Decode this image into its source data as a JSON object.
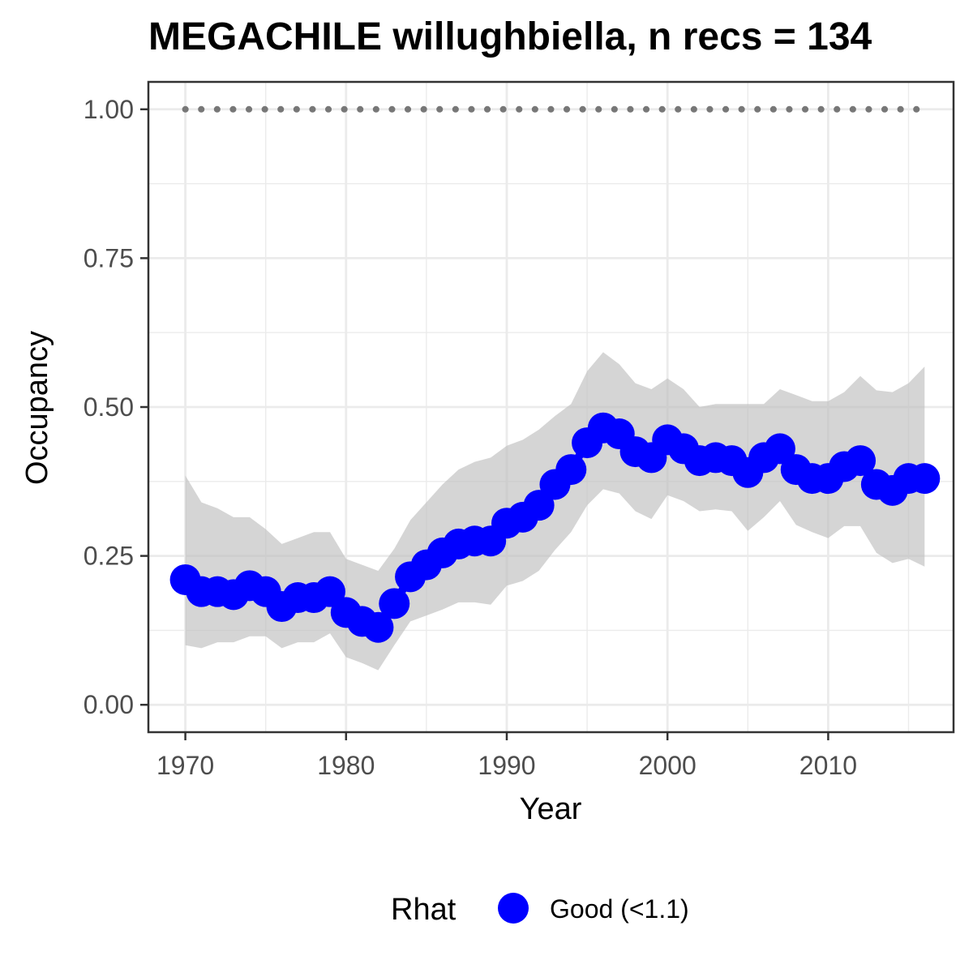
{
  "chart_data": {
    "type": "line",
    "title": "MEGACHILE willughbiella, n recs = 134",
    "xlabel": "Year",
    "ylabel": "Occupancy",
    "xlim": [
      1967.7,
      2017.8
    ],
    "ylim": [
      -0.046,
      1.046
    ],
    "x_ticks": [
      1970,
      1980,
      1990,
      2000,
      2010
    ],
    "x_tick_labels": [
      "1970",
      "1980",
      "1990",
      "2000",
      "2010"
    ],
    "y_ticks": [
      0,
      0.25,
      0.5,
      0.75,
      1
    ],
    "y_tick_labels": [
      "0.00",
      "0.25",
      "0.50",
      "0.75",
      "1.00"
    ],
    "grid": true,
    "x": [
      1970,
      1971,
      1972,
      1973,
      1974,
      1975,
      1976,
      1977,
      1978,
      1979,
      1980,
      1981,
      1982,
      1983,
      1984,
      1985,
      1986,
      1987,
      1988,
      1989,
      1990,
      1991,
      1992,
      1993,
      1994,
      1995,
      1996,
      1997,
      1998,
      1999,
      2000,
      2001,
      2002,
      2003,
      2004,
      2005,
      2006,
      2007,
      2008,
      2009,
      2010,
      2011,
      2012,
      2013,
      2014,
      2015,
      2016
    ],
    "series": [
      {
        "name": "Occupancy",
        "values": [
          0.21,
          0.19,
          0.19,
          0.185,
          0.2,
          0.19,
          0.165,
          0.18,
          0.18,
          0.19,
          0.155,
          0.14,
          0.13,
          0.17,
          0.215,
          0.235,
          0.255,
          0.27,
          0.275,
          0.275,
          0.305,
          0.315,
          0.335,
          0.37,
          0.395,
          0.44,
          0.465,
          0.455,
          0.425,
          0.415,
          0.445,
          0.43,
          0.41,
          0.415,
          0.41,
          0.39,
          0.415,
          0.43,
          0.395,
          0.38,
          0.38,
          0.4,
          0.41,
          0.37,
          0.36,
          0.38,
          0.38
        ],
        "lower": [
          0.1,
          0.095,
          0.105,
          0.105,
          0.115,
          0.115,
          0.095,
          0.105,
          0.105,
          0.12,
          0.08,
          0.07,
          0.058,
          0.1,
          0.14,
          0.15,
          0.16,
          0.172,
          0.172,
          0.168,
          0.2,
          0.208,
          0.225,
          0.26,
          0.29,
          0.335,
          0.362,
          0.355,
          0.325,
          0.312,
          0.352,
          0.342,
          0.325,
          0.328,
          0.325,
          0.292,
          0.315,
          0.342,
          0.302,
          0.29,
          0.28,
          0.3,
          0.3,
          0.255,
          0.238,
          0.245,
          0.232
        ],
        "upper": [
          0.385,
          0.34,
          0.33,
          0.315,
          0.315,
          0.295,
          0.27,
          0.28,
          0.29,
          0.29,
          0.245,
          0.235,
          0.225,
          0.262,
          0.31,
          0.34,
          0.37,
          0.395,
          0.408,
          0.415,
          0.435,
          0.445,
          0.462,
          0.485,
          0.505,
          0.56,
          0.592,
          0.572,
          0.54,
          0.53,
          0.548,
          0.53,
          0.5,
          0.505,
          0.505,
          0.505,
          0.505,
          0.53,
          0.52,
          0.51,
          0.51,
          0.525,
          0.552,
          0.528,
          0.525,
          0.54,
          0.568
        ],
        "rhat": "Good (<1.1)",
        "color": "#0000ff"
      }
    ],
    "reference_line": {
      "y": 1.0,
      "style": "dotted",
      "color": "#777777"
    },
    "ribbon_color": "#bebebe",
    "legend": {
      "title": "Rhat",
      "position": "bottom",
      "entries": [
        {
          "label": "Good (<1.1)",
          "color": "#0000ff"
        }
      ]
    }
  }
}
